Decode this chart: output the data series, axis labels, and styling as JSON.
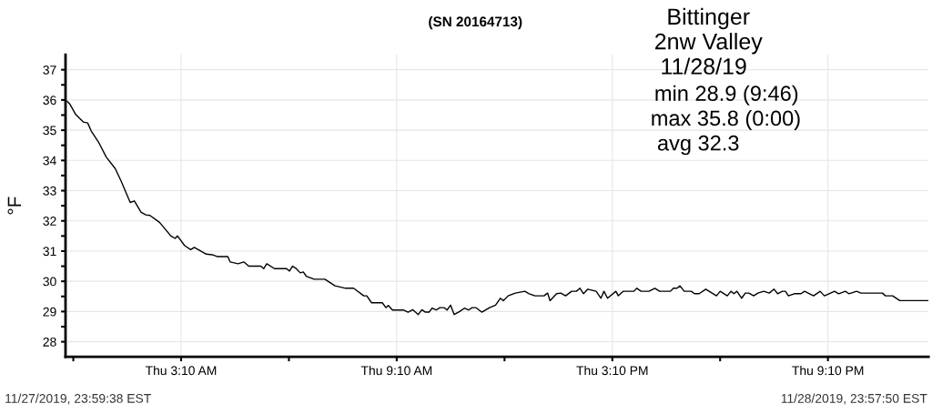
{
  "chart_data": {
    "type": "line",
    "title": "(SN 20164713)",
    "ylabel": "°F",
    "annotations": [
      "Bittinger",
      "2nw Valley",
      "11/28/19",
      "min 28.9 (9:46)",
      "max 35.8 (0:00)",
      "avg 32.3",
      "11/27/2019, 23:59:38 EST",
      "11/28/2019, 23:57:50 EST"
    ],
    "series": [
      {
        "color": "#000000",
        "x": [
          "2019-11-28T00:00",
          "2019-11-28T00:04",
          "2019-11-28T00:14",
          "2019-11-28T00:27",
          "2019-11-28T00:34",
          "2019-11-28T00:40",
          "2019-11-28T00:52",
          "2019-11-28T01:05",
          "2019-11-28T01:20",
          "2019-11-28T01:30",
          "2019-11-28T01:45",
          "2019-11-28T01:52",
          "2019-11-28T02:03",
          "2019-11-28T02:11",
          "2019-11-28T02:18",
          "2019-11-28T02:34",
          "2019-11-28T02:53",
          "2019-11-28T03:00",
          "2019-11-28T03:04",
          "2019-11-28T03:16",
          "2019-11-28T03:26",
          "2019-11-28T03:32",
          "2019-11-28T03:52",
          "2019-11-28T04:02",
          "2019-11-28T04:10",
          "2019-11-28T04:28",
          "2019-11-28T04:32",
          "2019-11-28T04:45",
          "2019-11-28T04:55",
          "2019-11-28T05:03",
          "2019-11-28T05:23",
          "2019-11-28T05:28",
          "2019-11-28T05:33",
          "2019-11-28T05:46",
          "2019-11-28T06:06",
          "2019-11-28T06:11",
          "2019-11-28T06:16",
          "2019-11-28T06:21",
          "2019-11-28T06:29",
          "2019-11-28T06:34",
          "2019-11-28T06:39",
          "2019-11-28T06:52",
          "2019-11-28T07:10",
          "2019-11-28T07:27",
          "2019-11-28T07:45",
          "2019-11-28T07:58",
          "2019-11-28T08:15",
          "2019-11-28T08:20",
          "2019-11-28T08:28",
          "2019-11-28T08:46",
          "2019-11-28T08:52",
          "2019-11-28T08:56",
          "2019-11-28T09:03",
          "2019-11-28T09:21",
          "2019-11-28T09:29",
          "2019-11-28T09:37",
          "2019-11-28T09:46",
          "2019-11-28T09:52",
          "2019-11-28T09:58",
          "2019-11-28T10:04",
          "2019-11-28T10:09",
          "2019-11-28T10:16",
          "2019-11-28T10:22",
          "2019-11-28T10:29",
          "2019-11-28T10:34",
          "2019-11-28T10:40",
          "2019-11-28T10:46",
          "2019-11-28T10:55",
          "2019-11-28T11:03",
          "2019-11-28T11:10",
          "2019-11-28T11:16",
          "2019-11-28T11:22",
          "2019-11-28T11:32",
          "2019-11-28T11:45",
          "2019-11-28T11:55",
          "2019-11-28T12:03",
          "2019-11-28T12:08",
          "2019-11-28T12:16",
          "2019-11-28T12:28",
          "2019-11-28T12:44",
          "2019-11-28T12:51",
          "2019-11-28T13:01",
          "2019-11-28T13:16",
          "2019-11-28T13:22",
          "2019-11-28T13:26",
          "2019-11-28T13:37",
          "2019-11-28T13:44",
          "2019-11-28T13:52",
          "2019-11-28T14:02",
          "2019-11-28T14:10",
          "2019-11-28T14:16",
          "2019-11-28T14:22",
          "2019-11-28T14:29",
          "2019-11-28T14:43",
          "2019-11-28T14:51",
          "2019-11-28T14:56",
          "2019-11-28T15:02",
          "2019-11-28T15:16",
          "2019-11-28T15:20",
          "2019-11-28T15:28",
          "2019-11-28T15:46",
          "2019-11-28T15:51",
          "2019-11-28T15:58",
          "2019-11-28T16:06",
          "2019-11-28T16:11",
          "2019-11-28T16:21",
          "2019-11-28T16:29",
          "2019-11-28T16:47",
          "2019-11-28T16:52",
          "2019-11-28T16:58",
          "2019-11-28T17:03",
          "2019-11-28T17:10",
          "2019-11-28T17:22",
          "2019-11-28T17:27",
          "2019-11-28T17:35",
          "2019-11-28T17:46",
          "2019-11-28T18:04",
          "2019-11-28T18:10",
          "2019-11-28T18:22",
          "2019-11-28T18:28",
          "2019-11-28T18:33",
          "2019-11-28T18:38",
          "2019-11-28T18:46",
          "2019-11-28T18:52",
          "2019-11-28T18:58",
          "2019-11-28T19:06",
          "2019-11-28T19:13",
          "2019-11-28T19:23",
          "2019-11-28T19:32",
          "2019-11-28T19:40",
          "2019-11-28T19:46",
          "2019-11-28T19:54",
          "2019-11-28T19:59",
          "2019-11-28T20:04",
          "2019-11-28T20:14",
          "2019-11-28T20:25",
          "2019-11-28T20:31",
          "2019-11-28T20:46",
          "2019-11-28T20:57",
          "2019-11-28T21:04",
          "2019-11-28T21:12",
          "2019-11-28T21:21",
          "2019-11-28T21:28",
          "2019-11-28T21:39",
          "2019-11-28T21:45",
          "2019-11-28T21:58",
          "2019-11-28T22:05",
          "2019-11-28T22:41",
          "2019-11-28T22:46",
          "2019-11-28T22:58",
          "2019-11-28T23:10",
          "2019-11-28T23:57"
        ],
        "values": [
          35.95,
          35.87,
          35.52,
          35.27,
          35.24,
          34.97,
          34.61,
          34.11,
          33.73,
          33.31,
          32.61,
          32.66,
          32.29,
          32.2,
          32.18,
          31.95,
          31.5,
          31.42,
          31.5,
          31.18,
          31.05,
          31.12,
          30.9,
          30.88,
          30.82,
          30.82,
          30.64,
          30.58,
          30.64,
          30.5,
          30.5,
          30.42,
          30.58,
          30.42,
          30.42,
          30.34,
          30.5,
          30.44,
          30.28,
          30.31,
          30.17,
          30.07,
          30.07,
          29.85,
          29.77,
          29.77,
          29.52,
          29.52,
          29.29,
          29.29,
          29.13,
          29.2,
          29.05,
          29.05,
          28.98,
          29.06,
          28.9,
          29.06,
          28.98,
          28.98,
          29.11,
          29.05,
          29.13,
          29.13,
          29.05,
          29.21,
          28.9,
          29.0,
          29.11,
          29.05,
          29.13,
          29.13,
          28.98,
          29.13,
          29.21,
          29.44,
          29.36,
          29.52,
          29.61,
          29.67,
          29.59,
          29.52,
          29.52,
          29.61,
          29.36,
          29.59,
          29.61,
          29.52,
          29.67,
          29.67,
          29.77,
          29.59,
          29.74,
          29.67,
          29.44,
          29.67,
          29.44,
          29.67,
          29.52,
          29.67,
          29.67,
          29.77,
          29.67,
          29.67,
          29.67,
          29.77,
          29.67,
          29.67,
          29.77,
          29.77,
          29.85,
          29.67,
          29.67,
          29.59,
          29.59,
          29.74,
          29.52,
          29.67,
          29.52,
          29.67,
          29.59,
          29.67,
          29.44,
          29.61,
          29.61,
          29.52,
          29.61,
          29.67,
          29.61,
          29.74,
          29.59,
          29.67,
          29.67,
          29.52,
          29.59,
          29.59,
          29.67,
          29.52,
          29.67,
          29.52,
          29.59,
          29.67,
          29.59,
          29.67,
          29.59,
          29.67,
          29.61,
          29.61,
          29.52,
          29.52,
          29.36,
          29.36
        ]
      }
    ],
    "xlim": [
      "2019-11-27T23:57",
      "2019-11-28T23:58"
    ],
    "ylim": [
      27.5,
      37.5
    ],
    "xticks": [
      {
        "value": "2019-11-28T00:10",
        "label": null
      },
      {
        "value": "2019-11-28T03:10",
        "label": "Thu 3:10 AM"
      },
      {
        "value": "2019-11-28T06:10",
        "label": null
      },
      {
        "value": "2019-11-28T09:10",
        "label": "Thu 9:10 AM"
      },
      {
        "value": "2019-11-28T12:10",
        "label": null
      },
      {
        "value": "2019-11-28T15:10",
        "label": "Thu 3:10 PM"
      },
      {
        "value": "2019-11-28T18:10",
        "label": null
      },
      {
        "value": "2019-11-28T21:10",
        "label": "Thu 9:10 PM"
      }
    ],
    "yticks": [
      28,
      {
        "value": 28.5,
        "label": null
      },
      29,
      {
        "value": 29.5,
        "label": null
      },
      30,
      {
        "value": 30.5,
        "label": null
      },
      31,
      {
        "value": 31.5,
        "label": null
      },
      32,
      {
        "value": 32.5,
        "label": null
      },
      33,
      {
        "value": 33.5,
        "label": null
      },
      34,
      {
        "value": 34.5,
        "label": null
      },
      35,
      {
        "value": 35.5,
        "label": null
      },
      36,
      {
        "value": 36.5,
        "label": null
      },
      37
    ],
    "grid": true,
    "legend": false,
    "marker": "none",
    "line_style": "solid"
  }
}
